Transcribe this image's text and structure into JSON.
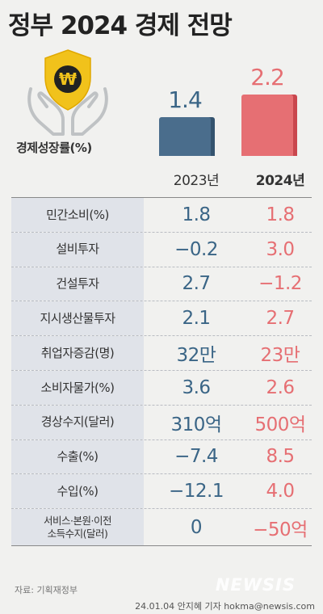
{
  "title": "정부 2024 경제 전망",
  "icon": {
    "name": "won-shield-hands-icon",
    "symbol": "₩"
  },
  "growth_label": "경제성장률(%)",
  "chart_data": {
    "type": "bar",
    "title": "정부 2024 경제 전망",
    "ylabel": "경제성장률(%)",
    "categories": [
      "2023년",
      "2024년"
    ],
    "values": [
      1.4,
      2.2
    ],
    "value_labels": [
      "1.4",
      "2.2"
    ],
    "colors": [
      "#4a6d8c",
      "#e66f73"
    ],
    "ylim": [
      0,
      2.2
    ]
  },
  "table": {
    "headers": [
      "2023년",
      "2024년"
    ],
    "rows": [
      {
        "label": "민간소비(%)",
        "v2023": "1.8",
        "v2024": "1.8"
      },
      {
        "label": "설비투자",
        "v2023": "−0.2",
        "v2024": "3.0"
      },
      {
        "label": "건설투자",
        "v2023": "2.7",
        "v2024": "−1.2"
      },
      {
        "label": "지시생산물투자",
        "v2023": "2.1",
        "v2024": "2.7"
      },
      {
        "label": "취업자증감(명)",
        "v2023": "32만",
        "v2024": "23만"
      },
      {
        "label": "소비자물가(%)",
        "v2023": "3.6",
        "v2024": "2.6"
      },
      {
        "label": "경상수지(달러)",
        "v2023": "310억",
        "v2024": "500억"
      },
      {
        "label": "수출(%)",
        "v2023": "−7.4",
        "v2024": "8.5"
      },
      {
        "label": "수입(%)",
        "v2023": "−12.1",
        "v2024": "4.0"
      },
      {
        "label": "서비스·본원·이전\n소득수지(달러)",
        "v2023": "0",
        "v2024": "−50억"
      }
    ]
  },
  "source": "자료: 기획재정부",
  "watermark": "NEWSIS",
  "byline": "24.01.04 안지혜 기자 hokma@newsis.com"
}
